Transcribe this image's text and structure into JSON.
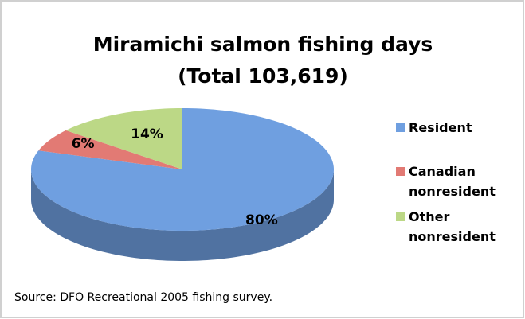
{
  "chart_data": {
    "type": "pie",
    "title": "Miramichi salmon fishing days",
    "subtitle": "(Total 103,619)",
    "categories": [
      "Resident",
      "Canadian nonresident",
      "Other nonresident"
    ],
    "values": [
      80,
      6,
      14
    ],
    "value_labels": [
      "80%",
      "6%",
      "14%"
    ],
    "colors": [
      "#6f9fe0",
      "#e27a74",
      "#bcd886"
    ],
    "legend": "right",
    "note": "Source: DFO Recreational 2005 fishing survey."
  }
}
